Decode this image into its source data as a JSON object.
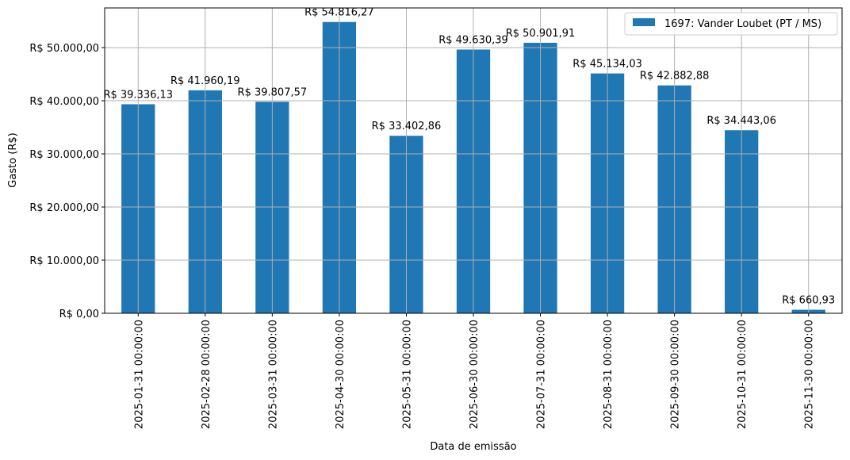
{
  "chart_data": {
    "type": "bar",
    "title": "",
    "xlabel": "Data de emissão",
    "ylabel": "Gasto (R$)",
    "ylim": [
      0,
      57500
    ],
    "grid": true,
    "legend_position": "upper right",
    "color": "#1f77b4",
    "categories": [
      "2025-01-31 00:00:00",
      "2025-02-28 00:00:00",
      "2025-03-31 00:00:00",
      "2025-04-30 00:00:00",
      "2025-05-31 00:00:00",
      "2025-06-30 00:00:00",
      "2025-07-31 00:00:00",
      "2025-08-31 00:00:00",
      "2025-09-30 00:00:00",
      "2025-10-31 00:00:00",
      "2025-11-30 00:00:00"
    ],
    "series": [
      {
        "name": "1697: Vander Loubet (PT / MS)",
        "values": [
          39336.13,
          41960.19,
          39807.57,
          54816.27,
          33402.86,
          49630.39,
          50901.91,
          45134.03,
          42882.88,
          34443.06,
          660.93
        ],
        "labels": [
          "R$ 39.336,13",
          "R$ 41.960,19",
          "R$ 39.807,57",
          "R$ 54.816,27",
          "R$ 33.402,86",
          "R$ 49.630,39",
          "R$ 50.901,91",
          "R$ 45.134,03",
          "R$ 42.882,88",
          "R$ 34.443,06",
          "R$ 660,93"
        ]
      }
    ],
    "yticks": [
      {
        "value": 0,
        "label": "R$ 0,00"
      },
      {
        "value": 10000,
        "label": "R$ 10.000,00"
      },
      {
        "value": 20000,
        "label": "R$ 20.000,00"
      },
      {
        "value": 30000,
        "label": "R$ 30.000,00"
      },
      {
        "value": 40000,
        "label": "R$ 40.000,00"
      },
      {
        "value": 50000,
        "label": "R$ 50.000,00"
      }
    ]
  }
}
